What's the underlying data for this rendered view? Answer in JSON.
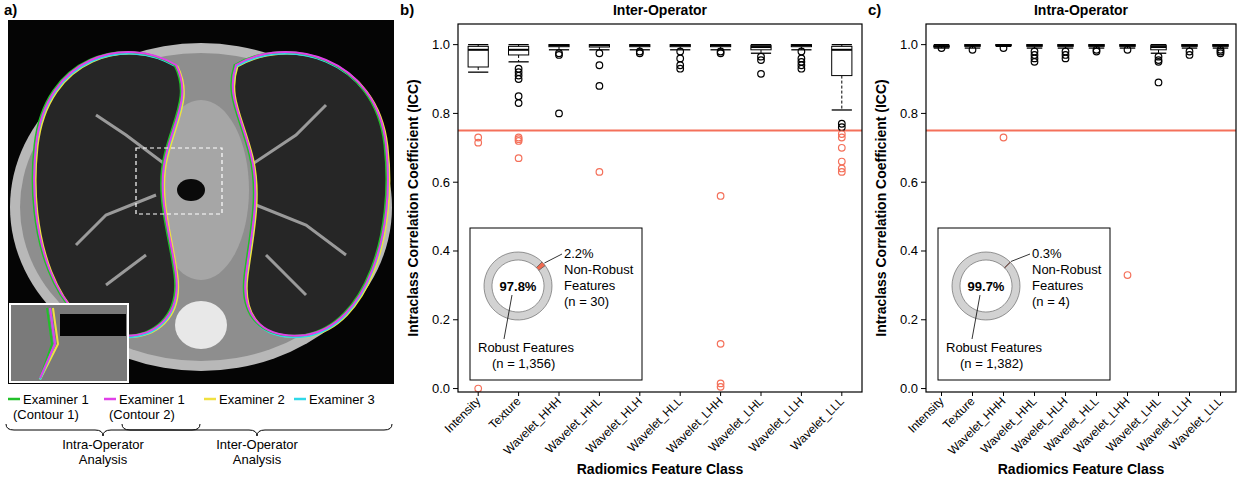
{
  "chart_data": [
    {
      "type": "image",
      "panel": "a)",
      "legend_items": [
        {
          "name": "Examiner 1 (Contour 1)",
          "color": "#22c02a"
        },
        {
          "name": "Examiner 1 (Contour 2)",
          "color": "#e040e8"
        },
        {
          "name": "Examiner 2",
          "color": "#f0e040"
        },
        {
          "name": "Examiner 3",
          "color": "#30d8e8"
        }
      ],
      "braces": [
        "Intra-Operator Analysis",
        "Inter-Operator Analysis"
      ]
    },
    {
      "type": "box",
      "panel": "b)",
      "title": "Inter-Operator",
      "x_label": "Radiomics Feature Class",
      "y_label": "Intraclass Correlation Coefficient (ICC)",
      "categories": [
        "Intensity",
        "Texture",
        "Wavelet_HHH",
        "Wavelet_HHL",
        "Wavelet_HLH",
        "Wavelet_HLL",
        "Wavelet_LHH",
        "Wavelet_LHL",
        "Wavelet_LLH",
        "Wavelet_LLL"
      ],
      "color": "#000000",
      "threshold": 0.75,
      "threshold_color": "#f4705a",
      "grid": false,
      "ylim": [
        -0.01,
        1.06
      ],
      "yticks": [
        {
          "value": 0,
          "label": "0.0"
        },
        {
          "value": 0.2,
          "label": "0.2"
        },
        {
          "value": 0.4,
          "label": "0.4"
        },
        {
          "value": 0.6,
          "label": "0.6"
        },
        {
          "value": 0.8,
          "label": "0.8"
        },
        {
          "value": 1,
          "label": "1.0"
        }
      ],
      "boxes": [
        {
          "whisker_low": 0.92,
          "q1": 0.935,
          "median": 0.985,
          "q3": 0.995,
          "whisker_high": 1.0,
          "outliers": [
            0.73,
            0.715,
            0.0
          ]
        },
        {
          "whisker_low": 0.95,
          "q1": 0.97,
          "median": 0.985,
          "q3": 0.995,
          "whisker_high": 1.0,
          "outliers": [
            0.93,
            0.92,
            0.91,
            0.9,
            0.85,
            0.83,
            0.73,
            0.725,
            0.72,
            0.67
          ]
        },
        {
          "whisker_low": 0.985,
          "q1": 0.994,
          "median": 0.998,
          "q3": 1.0,
          "whisker_high": 1.0,
          "outliers": [
            0.975,
            0.97,
            0.8
          ]
        },
        {
          "whisker_low": 0.985,
          "q1": 0.993,
          "median": 0.998,
          "q3": 1.0,
          "whisker_high": 1.0,
          "outliers": [
            0.975,
            0.94,
            0.88,
            0.63
          ]
        },
        {
          "whisker_low": 0.985,
          "q1": 0.994,
          "median": 0.998,
          "q3": 1.0,
          "whisker_high": 1.0,
          "outliers": [
            0.98,
            0.975
          ]
        },
        {
          "whisker_low": 0.985,
          "q1": 0.994,
          "median": 0.998,
          "q3": 1.0,
          "whisker_high": 1.0,
          "outliers": [
            0.98,
            0.96,
            0.94,
            0.93
          ]
        },
        {
          "whisker_low": 0.985,
          "q1": 0.994,
          "median": 0.998,
          "q3": 1.0,
          "whisker_high": 1.0,
          "outliers": [
            0.98,
            0.975,
            0.56,
            0.13,
            0.015,
            0.005
          ]
        },
        {
          "whisker_low": 0.975,
          "q1": 0.985,
          "median": 0.993,
          "q3": 0.998,
          "whisker_high": 1.0,
          "outliers": [
            0.965,
            0.955,
            0.915
          ]
        },
        {
          "whisker_low": 0.985,
          "q1": 0.994,
          "median": 0.998,
          "q3": 1.0,
          "whisker_high": 1.0,
          "outliers": [
            0.98,
            0.96,
            0.95,
            0.94,
            0.93
          ]
        },
        {
          "whisker_low": 0.81,
          "q1": 0.91,
          "median": 0.985,
          "q3": 0.995,
          "whisker_high": 1.0,
          "outliers": [
            0.77,
            0.76,
            0.74,
            0.73,
            0.7,
            0.66,
            0.64,
            0.63
          ]
        }
      ],
      "inset": {
        "type": "pie",
        "names": [
          "Robust Features",
          "Non-Robust Features"
        ],
        "values": [
          97.8,
          2.2
        ],
        "value_labels": [
          "97.8%",
          "2.2%"
        ],
        "counts": [
          {
            "value": 1356,
            "label": "(n = 1,356)"
          },
          {
            "value": 30,
            "label": "(n = 30)"
          }
        ],
        "colors": [
          "#d2d2d2",
          "#f06a50"
        ]
      }
    },
    {
      "type": "box",
      "panel": "c)",
      "title": "Intra-Operator",
      "x_label": "Radiomics Feature Class",
      "y_label": "Intraclass Correlation Coefficient (ICC)",
      "categories": [
        "Intensity",
        "Texture",
        "Wavelet_HHH",
        "Wavelet_HHL",
        "Wavelet_HLH",
        "Wavelet_HLL",
        "Wavelet_LHH",
        "Wavelet_LHL",
        "Wavelet_LLH",
        "Wavelet_LLL"
      ],
      "color": "#000000",
      "threshold": 0.75,
      "threshold_color": "#f4705a",
      "grid": false,
      "ylim": [
        -0.01,
        1.06
      ],
      "yticks": [
        {
          "value": 0,
          "label": "0.0"
        },
        {
          "value": 0.2,
          "label": "0.2"
        },
        {
          "value": 0.4,
          "label": "0.4"
        },
        {
          "value": 0.6,
          "label": "0.6"
        },
        {
          "value": 0.8,
          "label": "0.8"
        },
        {
          "value": 1,
          "label": "1.0"
        }
      ],
      "boxes": [
        {
          "whisker_low": 0.99,
          "q1": 0.993,
          "median": 0.995,
          "q3": 0.997,
          "whisker_high": 1.0,
          "outliers": [
            0.99
          ]
        },
        {
          "whisker_low": 0.99,
          "q1": 0.995,
          "median": 0.998,
          "q3": 1.0,
          "whisker_high": 1.0,
          "outliers": [
            0.985
          ]
        },
        {
          "whisker_low": 0.995,
          "q1": 0.997,
          "median": 0.999,
          "q3": 1.0,
          "whisker_high": 1.0,
          "outliers": [
            0.99,
            0.73
          ]
        },
        {
          "whisker_low": 0.99,
          "q1": 0.995,
          "median": 0.998,
          "q3": 1.0,
          "whisker_high": 1.0,
          "outliers": [
            0.98,
            0.97,
            0.96,
            0.95
          ]
        },
        {
          "whisker_low": 0.99,
          "q1": 0.995,
          "median": 0.998,
          "q3": 1.0,
          "whisker_high": 1.0,
          "outliers": [
            0.98,
            0.97,
            0.96
          ]
        },
        {
          "whisker_low": 0.99,
          "q1": 0.995,
          "median": 0.998,
          "q3": 1.0,
          "whisker_high": 1.0,
          "outliers": [
            0.985,
            0.98
          ]
        },
        {
          "whisker_low": 0.99,
          "q1": 0.995,
          "median": 0.998,
          "q3": 1.0,
          "whisker_high": 1.0,
          "outliers": [
            0.985,
            0.33
          ]
        },
        {
          "whisker_low": 0.975,
          "q1": 0.985,
          "median": 0.993,
          "q3": 0.998,
          "whisker_high": 1.0,
          "outliers": [
            0.965,
            0.955,
            0.95,
            0.89
          ]
        },
        {
          "whisker_low": 0.99,
          "q1": 0.995,
          "median": 0.998,
          "q3": 1.0,
          "whisker_high": 1.0,
          "outliers": [
            0.98,
            0.97
          ]
        },
        {
          "whisker_low": 0.99,
          "q1": 0.995,
          "median": 0.998,
          "q3": 1.0,
          "whisker_high": 1.0,
          "outliers": [
            0.985,
            0.98,
            0.975
          ]
        }
      ],
      "inset": {
        "type": "pie",
        "names": [
          "Robust Features",
          "Non-Robust Features"
        ],
        "values": [
          99.7,
          0.3
        ],
        "value_labels": [
          "99.7%",
          "0.3%"
        ],
        "counts": [
          {
            "value": 1382,
            "label": "(n = 1,382)"
          },
          {
            "value": 4,
            "label": "(n = 4)"
          }
        ],
        "colors": [
          "#d2d2d2",
          "#f06a50"
        ]
      }
    }
  ]
}
